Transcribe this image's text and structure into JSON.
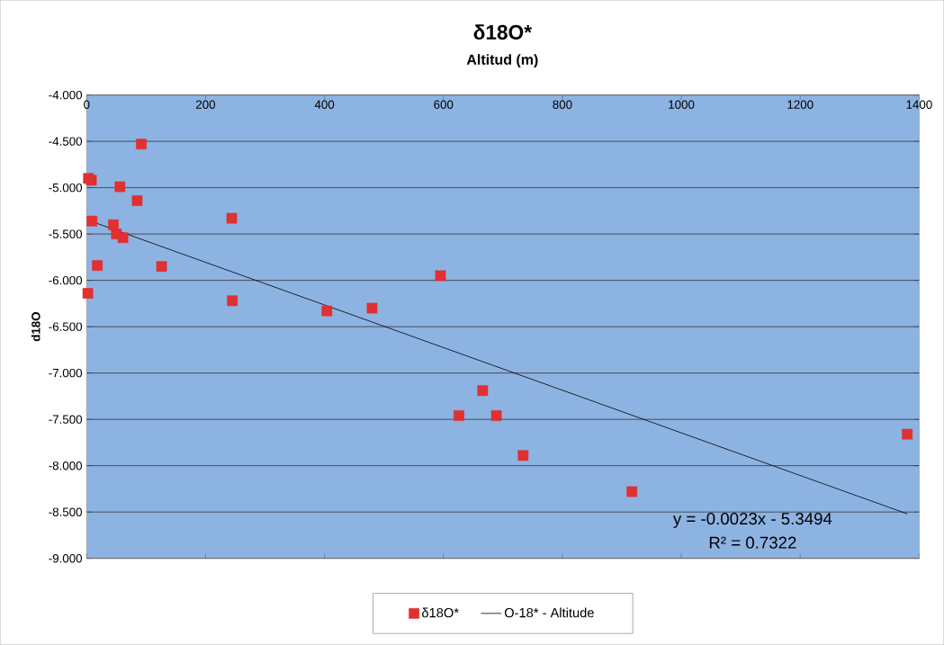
{
  "chart_data": {
    "type": "scatter",
    "title": "δ18O*",
    "xlabel": "Altitud (m)",
    "ylabel": "d18O",
    "xlim": [
      0,
      1400
    ],
    "xticks": [
      0,
      200,
      400,
      600,
      800,
      1000,
      1200,
      1400
    ],
    "ylim": [
      -9,
      -4
    ],
    "yticks": [
      {
        "value": -4,
        "label": "-4.000"
      },
      {
        "value": -4.5,
        "label": "-4.500"
      },
      {
        "value": -5,
        "label": "-5.000"
      },
      {
        "value": -5.5,
        "label": "-5.500"
      },
      {
        "value": -6,
        "label": "-6.000"
      },
      {
        "value": -6.5,
        "label": "-6.500"
      },
      {
        "value": -7,
        "label": "-7.000"
      },
      {
        "value": -7.5,
        "label": "-7.500"
      },
      {
        "value": -8,
        "label": "-8.000"
      },
      {
        "value": -8.5,
        "label": "-8.500"
      },
      {
        "value": -9,
        "label": "-9.000"
      }
    ],
    "grid": "y",
    "legend": "bottom",
    "series": [
      {
        "name": "δ18O*",
        "marker": "square",
        "color": "#e03030",
        "x": [
          2,
          3,
          8,
          9,
          18,
          45,
          50,
          56,
          61,
          85,
          92,
          126,
          244,
          245,
          404,
          480,
          595,
          626,
          666,
          689,
          734,
          917,
          1380
        ],
        "values": [
          -6.14,
          -4.9,
          -4.92,
          -5.36,
          -5.84,
          -5.4,
          -5.5,
          -4.99,
          -5.54,
          -5.14,
          -4.53,
          -5.85,
          -5.33,
          -6.22,
          -6.33,
          -6.3,
          -5.95,
          -7.46,
          -7.19,
          -7.46,
          -7.89,
          -8.28,
          -7.66
        ]
      },
      {
        "name": "O-18* - Altitude",
        "type": "line",
        "marker": "none",
        "color": "#000000",
        "x": [
          2,
          1380
        ],
        "values": [
          -5.35,
          -8.52
        ]
      }
    ],
    "annotations": [
      "y = -0.0023x - 5.3494",
      "R² = 0.7322"
    ]
  }
}
